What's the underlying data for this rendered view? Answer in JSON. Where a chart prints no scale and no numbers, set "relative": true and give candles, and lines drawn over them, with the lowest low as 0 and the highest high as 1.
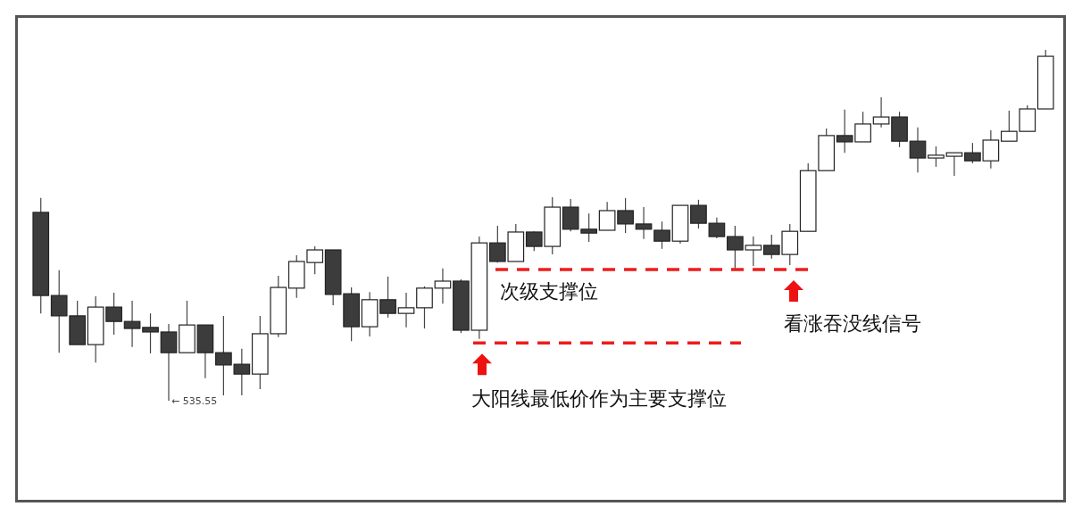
{
  "chart_data": {
    "type": "candlestick",
    "relative": true,
    "categories": [
      null,
      null,
      null,
      null,
      null,
      null,
      null,
      null,
      null,
      null,
      null,
      null,
      null,
      null,
      null,
      null,
      null,
      null,
      null,
      null,
      null,
      null,
      null,
      null,
      null,
      null,
      null,
      null,
      null,
      null,
      null,
      null,
      null,
      null,
      null,
      null,
      null,
      null,
      null,
      null,
      null,
      null,
      null,
      null,
      null,
      null,
      null,
      null,
      null,
      null,
      null,
      null,
      null,
      null,
      null,
      null
    ],
    "ohlc": [
      [
        0.537,
        0.578,
        0.249,
        0.3
      ],
      [
        0.3,
        0.372,
        0.137,
        0.242
      ],
      [
        0.242,
        0.285,
        0.16,
        0.16
      ],
      [
        0.16,
        0.298,
        0.109,
        0.267
      ],
      [
        0.267,
        0.308,
        0.188,
        0.226
      ],
      [
        0.226,
        0.285,
        0.153,
        0.206
      ],
      [
        0.209,
        0.249,
        0.135,
        0.196
      ],
      [
        0.196,
        0.219,
        0,
        0.137
      ],
      [
        0.137,
        0.285,
        0.137,
        0.216
      ],
      [
        0.216,
        0.216,
        0.064,
        0.137
      ],
      [
        0.137,
        0.242,
        0.015,
        0.102
      ],
      [
        0.104,
        0.148,
        0.015,
        0.076
      ],
      [
        0.076,
        0.242,
        0.033,
        0.191
      ],
      [
        0.191,
        0.356,
        0.181,
        0.323
      ],
      [
        0.321,
        0.415,
        0.293,
        0.397
      ],
      [
        0.394,
        0.44,
        0.361,
        0.43
      ],
      [
        0.43,
        0.43,
        0.272,
        0.303
      ],
      [
        0.305,
        0.323,
        0.17,
        0.211
      ],
      [
        0.211,
        0.31,
        0.183,
        0.288
      ],
      [
        0.288,
        0.354,
        0.237,
        0.249
      ],
      [
        0.249,
        0.308,
        0.209,
        0.265
      ],
      [
        0.265,
        0.326,
        0.206,
        0.321
      ],
      [
        0.321,
        0.377,
        0.277,
        0.341
      ],
      [
        0.341,
        0.346,
        0.193,
        0.201
      ],
      [
        0.201,
        0.468,
        0.176,
        0.45
      ],
      [
        0.45,
        0.499,
        0.394,
        0.397
      ],
      [
        0.397,
        0.504,
        0.397,
        0.481
      ],
      [
        0.481,
        0.483,
        0.427,
        0.44
      ],
      [
        0.44,
        0.58,
        0.417,
        0.552
      ],
      [
        0.552,
        0.575,
        0.483,
        0.489
      ],
      [
        0.489,
        0.534,
        0.453,
        0.478
      ],
      [
        0.486,
        0.567,
        0.486,
        0.542
      ],
      [
        0.542,
        0.578,
        0.478,
        0.504
      ],
      [
        0.504,
        0.552,
        0.461,
        0.489
      ],
      [
        0.486,
        0.511,
        0.433,
        0.455
      ],
      [
        0.455,
        0.557,
        0.448,
        0.557
      ],
      [
        0.557,
        0.573,
        0.491,
        0.506
      ],
      [
        0.506,
        0.522,
        0.463,
        0.468
      ],
      [
        0.468,
        0.499,
        0.377,
        0.43
      ],
      [
        0.43,
        0.468,
        0.384,
        0.443
      ],
      [
        0.443,
        0.473,
        0.405,
        0.417
      ],
      [
        0.417,
        0.504,
        0.387,
        0.483
      ],
      [
        0.483,
        0.677,
        0.483,
        0.656
      ],
      [
        0.656,
        0.776,
        0.656,
        0.756
      ],
      [
        0.756,
        0.83,
        0.707,
        0.738
      ],
      [
        0.738,
        0.824,
        0.738,
        0.789
      ],
      [
        0.789,
        0.865,
        0.779,
        0.809
      ],
      [
        0.809,
        0.824,
        0.723,
        0.74
      ],
      [
        0.74,
        0.779,
        0.651,
        0.692
      ],
      [
        0.692,
        0.725,
        0.667,
        0.7
      ],
      [
        0.697,
        0.707,
        0.641,
        0.707
      ],
      [
        0.707,
        0.735,
        0.677,
        0.684
      ],
      [
        0.684,
        0.771,
        0.662,
        0.743
      ],
      [
        0.74,
        0.827,
        0.74,
        0.768
      ],
      [
        0.768,
        0.842,
        0.768,
        0.832
      ],
      [
        0.832,
        1,
        0.832,
        0.982
      ]
    ],
    "ref_lines": [
      {
        "axis": "y",
        "value": 0.374,
        "label": "次级支撑位",
        "color": "#ee1c1c",
        "line_style": "dashed"
      },
      {
        "axis": "y",
        "value": 0.165,
        "label": "大阳线最低价作为主要支撑位",
        "color": "#ee1c1c",
        "line_style": "dashed"
      }
    ],
    "annotations": [
      "← 535.55",
      "看涨吞没线信号"
    ]
  }
}
